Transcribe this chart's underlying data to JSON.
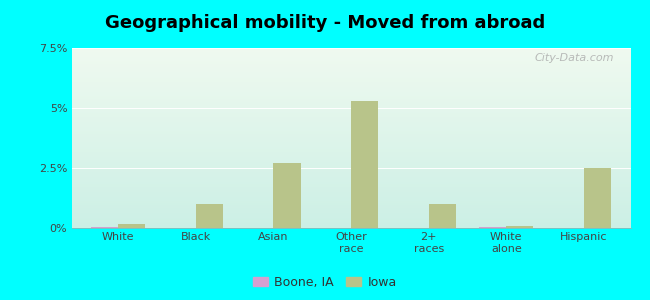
{
  "title": "Geographical mobility - Moved from abroad",
  "categories": [
    "White",
    "Black",
    "Asian",
    "Other\nrace",
    "2+\nraces",
    "White\nalone",
    "Hispanic"
  ],
  "boone_values": [
    0.05,
    0.0,
    0.0,
    0.0,
    0.0,
    0.05,
    0.0
  ],
  "iowa_values": [
    0.18,
    1.0,
    2.7,
    5.3,
    1.0,
    0.1,
    2.5
  ],
  "boone_color": "#d4a0d0",
  "iowa_color": "#b8c48a",
  "bar_width": 0.35,
  "ylim": [
    0,
    7.5
  ],
  "yticks": [
    0,
    2.5,
    5.0,
    7.5
  ],
  "ytick_labels": [
    "0%",
    "2.5%",
    "5%",
    "7.5%"
  ],
  "cyan_bg": "#00ffff",
  "title_fontsize": 13,
  "legend_labels": [
    "Boone, IA",
    "Iowa"
  ],
  "watermark": "City-Data.com",
  "grad_top": "#eef5ee",
  "grad_bottom": "#c8ede8"
}
